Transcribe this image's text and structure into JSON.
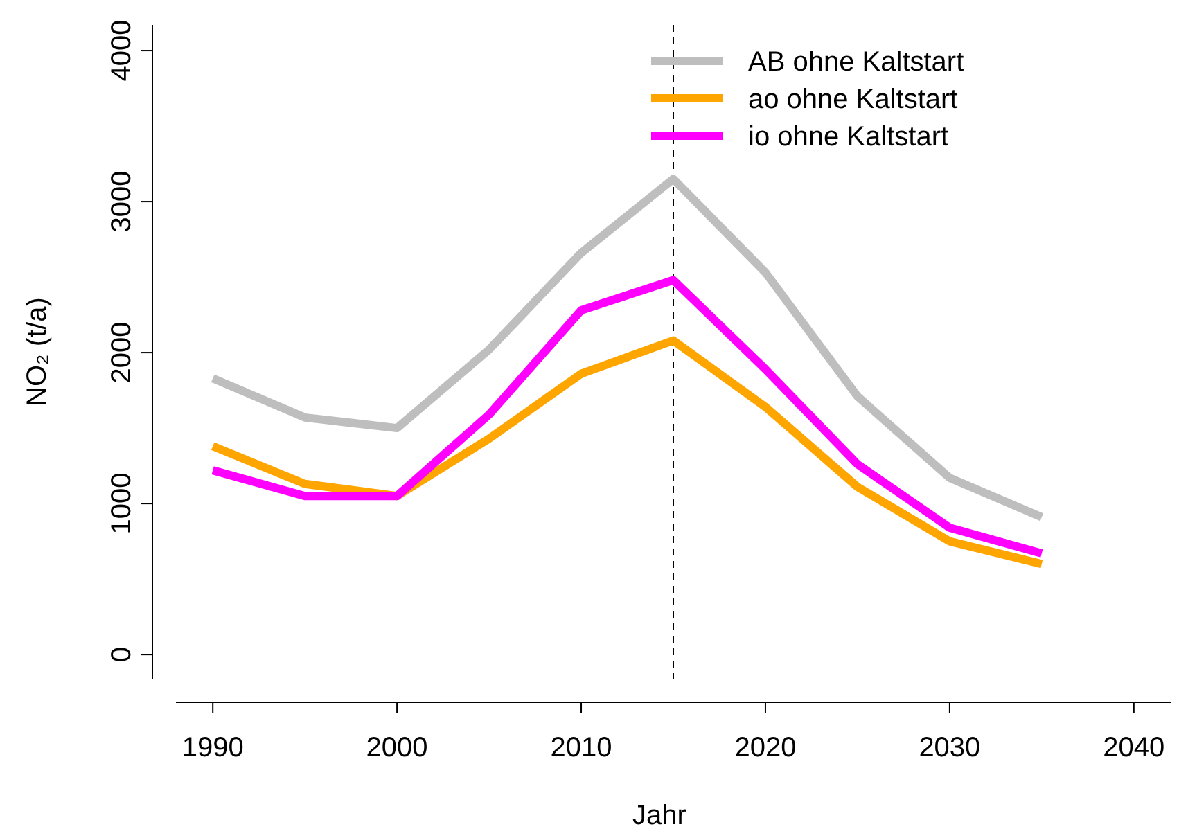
{
  "chart_data": {
    "type": "line",
    "xlabel": "Jahr",
    "ylabel": "NO₂ (t/a)",
    "x": [
      1990,
      1995,
      2000,
      2005,
      2010,
      2015,
      2020,
      2025,
      2030,
      2035
    ],
    "series": [
      {
        "name": "AB ohne Kaltstart",
        "color": "#bebebe",
        "values": [
          1830,
          1570,
          1500,
          2020,
          2660,
          3150,
          2530,
          1710,
          1170,
          910
        ]
      },
      {
        "name": "ao ohne Kaltstart",
        "color": "#ffa500",
        "values": [
          1380,
          1130,
          1050,
          1430,
          1860,
          2080,
          1640,
          1110,
          750,
          600
        ]
      },
      {
        "name": "io ohne Kaltstart",
        "color": "#ff00ff",
        "values": [
          1220,
          1050,
          1050,
          1590,
          2280,
          2480,
          1890,
          1260,
          840,
          670
        ]
      }
    ],
    "xlim": [
      1988,
      2042
    ],
    "ylim": [
      -160,
      4170
    ],
    "xticks": [
      1990,
      2000,
      2010,
      2020,
      2030,
      2040
    ],
    "yticks": [
      0,
      1000,
      2000,
      3000,
      4000
    ],
    "ref_lines": [
      {
        "axis": "x",
        "value": 2015,
        "color": "#000000",
        "line_style": "dashed"
      }
    ],
    "legend": "top right",
    "line_style": "solid",
    "grid": false
  }
}
